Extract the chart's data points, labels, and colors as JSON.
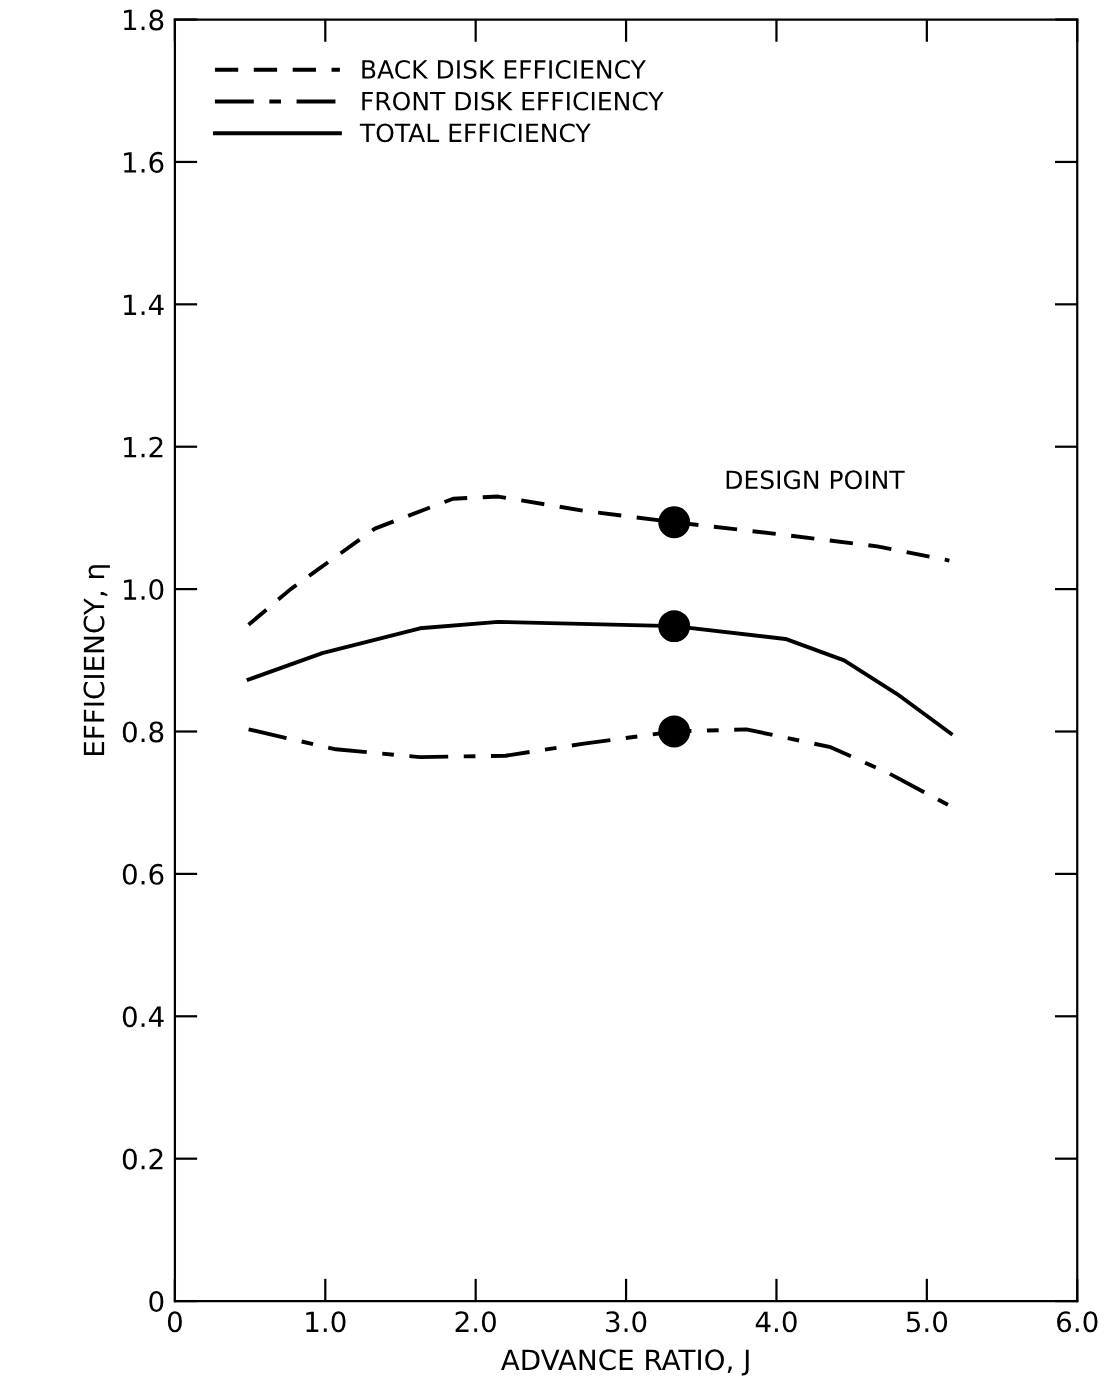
{
  "chart_data": {
    "type": "line",
    "xlabel": "ADVANCE RATIO, J",
    "ylabel": "EFFICIENCY, η",
    "xlim": [
      0,
      6
    ],
    "ylim": [
      0,
      1.8
    ],
    "xticks": [
      {
        "value": 0,
        "label": "0"
      },
      {
        "value": 1,
        "label": "1.0"
      },
      {
        "value": 2,
        "label": "2.0"
      },
      {
        "value": 3,
        "label": "3.0"
      },
      {
        "value": 4,
        "label": "4.0"
      },
      {
        "value": 5,
        "label": "5.0"
      },
      {
        "value": 6,
        "label": "6.0"
      }
    ],
    "yticks": [
      {
        "value": 0,
        "label": "0"
      },
      0.2,
      0.4,
      0.6,
      0.8,
      {
        "value": 1,
        "label": "1.0"
      },
      1.2,
      1.4,
      1.6,
      1.8
    ],
    "grid": false,
    "legend": "top left",
    "marker": "none",
    "series": [
      {
        "name": "BACK DISK EFFICIENCY",
        "color": "#000000",
        "line_style": "dashed",
        "x": [
          0.49,
          0.77,
          1.33,
          1.85,
          2.15,
          2.72,
          3.32,
          4.02,
          4.67,
          5.15
        ],
        "values": [
          0.95,
          1.0,
          1.085,
          1.127,
          1.13,
          1.11,
          1.094,
          1.077,
          1.06,
          1.04
        ]
      },
      {
        "name": "FRONT DISK EFFICIENCY",
        "color": "#000000",
        "line_style": "dashdot",
        "x": [
          0.49,
          1.07,
          1.63,
          2.2,
          2.72,
          3.32,
          3.8,
          4.36,
          4.75,
          5.14
        ],
        "values": [
          0.803,
          0.775,
          0.764,
          0.766,
          0.783,
          0.8,
          0.803,
          0.778,
          0.741,
          0.697
        ]
      },
      {
        "name": "TOTAL EFFICIENCY",
        "color": "#000000",
        "line_style": "solid",
        "x": [
          0.49,
          0.98,
          1.63,
          2.15,
          3.32,
          4.06,
          4.45,
          4.8,
          5.16
        ],
        "values": [
          0.873,
          0.91,
          0.945,
          0.954,
          0.948,
          0.93,
          0.9,
          0.853,
          0.797
        ]
      },
      {
        "type": "scatter",
        "color": "#000000",
        "marker": "circle",
        "x": [
          3.32,
          3.32,
          3.32
        ],
        "values": [
          1.094,
          0.948,
          0.8
        ]
      }
    ],
    "annotations": [
      {
        "text": "DESIGN POINT",
        "x": 3.32,
        "y": 1.094
      }
    ]
  }
}
